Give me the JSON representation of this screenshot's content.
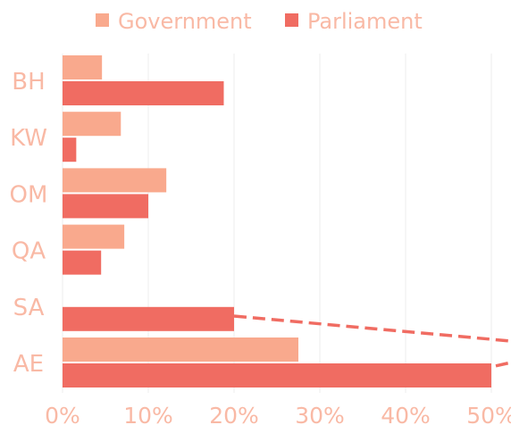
{
  "chart_data": {
    "type": "bar",
    "orientation": "horizontal",
    "categories": [
      "BH",
      "KW",
      "OM",
      "QA",
      "SA",
      "AE"
    ],
    "series": [
      {
        "name": "Government",
        "color": "#F9A98D",
        "values": [
          4.6,
          6.8,
          12.1,
          7.2,
          0,
          27.5
        ]
      },
      {
        "name": "Parliament",
        "color": "#F06C62",
        "values": [
          18.8,
          1.6,
          10.0,
          4.5,
          20.0,
          50.0
        ]
      }
    ],
    "xlim": [
      0,
      52.5
    ],
    "x_ticks": [
      "0%",
      "10%",
      "20%",
      "30%",
      "40%",
      "50%"
    ],
    "x_tick_values": [
      0,
      10,
      20,
      30,
      40,
      50
    ],
    "grid": "vertical",
    "legend_position": "top",
    "title": "",
    "xlabel": "",
    "ylabel": "",
    "label_color": "#F9B9A5",
    "grid_color": "#EDEDED",
    "dash_color": "#F06C62"
  }
}
